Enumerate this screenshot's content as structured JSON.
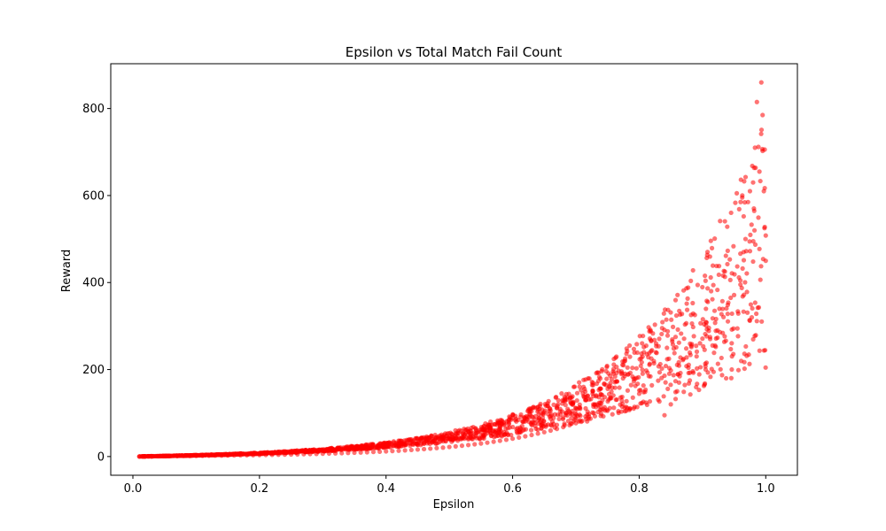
{
  "chart_data": {
    "type": "scatter",
    "title": "Epsilon vs Total Match Fail Count",
    "xlabel": "Epsilon",
    "ylabel": "Reward",
    "xlim": [
      -0.035,
      1.05
    ],
    "ylim": [
      -43,
      903
    ],
    "x_ticks": [
      0.0,
      0.2,
      0.4,
      0.6,
      0.8,
      1.0
    ],
    "x_tick_labels": [
      "0.0",
      "0.2",
      "0.4",
      "0.6",
      "0.8",
      "1.0"
    ],
    "y_ticks": [
      0,
      200,
      400,
      600,
      800
    ],
    "y_tick_labels": [
      "0",
      "200",
      "400",
      "600",
      "800"
    ],
    "grid": false,
    "legend": "none",
    "marker_color": "#ff0000",
    "marker_alpha": 0.55,
    "series": [
      {
        "points": [
          [
            0.01,
            0.0
          ],
          [
            0.02,
            0.3
          ],
          [
            0.03,
            0.5
          ],
          [
            0.04,
            0.7
          ],
          [
            0.05,
            0.9
          ],
          [
            0.06,
            1.0
          ],
          [
            0.07,
            1.2
          ],
          [
            0.08,
            1.3
          ],
          [
            0.09,
            1.5
          ],
          [
            0.1,
            1.6
          ],
          [
            0.11,
            1.8
          ],
          [
            0.12,
            2.0
          ],
          [
            0.13,
            2.1
          ],
          [
            0.14,
            2.3
          ],
          [
            0.15,
            2.5
          ],
          [
            0.16,
            2.7
          ],
          [
            0.17,
            2.9
          ],
          [
            0.18,
            3.1
          ],
          [
            0.19,
            3.3
          ],
          [
            0.2,
            3.5
          ],
          [
            0.21,
            3.8
          ],
          [
            0.22,
            4.0
          ],
          [
            0.23,
            4.3
          ],
          [
            0.24,
            4.5
          ],
          [
            0.25,
            4.8
          ],
          [
            0.26,
            5.1
          ],
          [
            0.27,
            5.4
          ],
          [
            0.28,
            5.8
          ],
          [
            0.29,
            6.1
          ],
          [
            0.3,
            6.5
          ],
          [
            0.31,
            6.9
          ],
          [
            0.32,
            7.3
          ],
          [
            0.33,
            7.8
          ],
          [
            0.34,
            8.3
          ],
          [
            0.35,
            8.8
          ],
          [
            0.36,
            9.3
          ],
          [
            0.37,
            9.9
          ],
          [
            0.38,
            10.5
          ],
          [
            0.39,
            11.1
          ],
          [
            0.4,
            11.8
          ],
          [
            0.41,
            12.6
          ],
          [
            0.42,
            13.4
          ],
          [
            0.43,
            14.2
          ],
          [
            0.44,
            15.1
          ],
          [
            0.45,
            16.1
          ],
          [
            0.46,
            17.1
          ],
          [
            0.47,
            18.2
          ],
          [
            0.48,
            19.4
          ],
          [
            0.49,
            20.6
          ],
          [
            0.5,
            22.0
          ],
          [
            0.51,
            23.4
          ],
          [
            0.52,
            24.9
          ],
          [
            0.53,
            26.5
          ],
          [
            0.54,
            28.2
          ],
          [
            0.55,
            30.0
          ],
          [
            0.56,
            31.9
          ],
          [
            0.57,
            34.0
          ],
          [
            0.58,
            36.2
          ],
          [
            0.59,
            38.5
          ],
          [
            0.6,
            41.0
          ],
          [
            0.61,
            43.7
          ],
          [
            0.62,
            46.5
          ],
          [
            0.63,
            49.5
          ],
          [
            0.64,
            52.7
          ],
          [
            0.65,
            56.1
          ],
          [
            0.66,
            59.7
          ],
          [
            0.67,
            63.6
          ],
          [
            0.68,
            67.7
          ],
          [
            0.69,
            72.1
          ],
          [
            0.7,
            76.8
          ],
          [
            0.71,
            81.8
          ],
          [
            0.72,
            87.1
          ],
          [
            0.73,
            92.8
          ],
          [
            0.74,
            98.8
          ],
          [
            0.75,
            105.2
          ],
          [
            0.76,
            112.1
          ],
          [
            0.77,
            119.4
          ],
          [
            0.78,
            127.2
          ],
          [
            0.79,
            135.5
          ],
          [
            0.8,
            144.3
          ],
          [
            0.81,
            153.7
          ],
          [
            0.82,
            163.7
          ],
          [
            0.83,
            174.4
          ],
          [
            0.84,
            185.7
          ],
          [
            0.85,
            197.8
          ],
          [
            0.86,
            210.7
          ],
          [
            0.87,
            224.4
          ],
          [
            0.88,
            239.0
          ],
          [
            0.89,
            254.5
          ],
          [
            0.9,
            271.1
          ],
          [
            0.91,
            288.7
          ],
          [
            0.92,
            307.4
          ],
          [
            0.93,
            327.4
          ],
          [
            0.94,
            348.6
          ],
          [
            0.95,
            371.2
          ],
          [
            0.96,
            395.3
          ],
          [
            0.97,
            420.9
          ],
          [
            0.98,
            448.2
          ],
          [
            0.99,
            477.2
          ],
          [
            1.0,
            508.1
          ],
          [
            0.955,
            437
          ],
          [
            0.965,
            470
          ],
          [
            0.968,
            500
          ],
          [
            0.972,
            585
          ],
          [
            0.975,
            610
          ],
          [
            0.98,
            630
          ],
          [
            0.983,
            710
          ],
          [
            0.986,
            815
          ],
          [
            0.99,
            655
          ],
          [
            0.993,
            860
          ],
          [
            0.995,
            785
          ],
          [
            0.997,
            610
          ],
          [
            0.998,
            525
          ],
          [
            1.0,
            450
          ],
          [
            0.92,
            255
          ],
          [
            0.905,
            200
          ],
          [
            0.88,
            175
          ],
          [
            0.86,
            150
          ],
          [
            0.85,
            120
          ],
          [
            0.84,
            95
          ]
        ]
      }
    ]
  }
}
